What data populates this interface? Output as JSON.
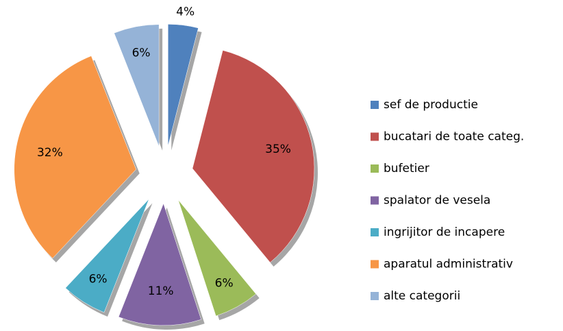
{
  "chart_data": {
    "type": "pie",
    "categories": [
      "sef de productie",
      "bucatari de toate categ.",
      "bufetier",
      "spalator de vesela",
      "ingrijitor de incapere",
      "aparatul administrativ",
      "alte categorii"
    ],
    "values": [
      4,
      35,
      6,
      11,
      6,
      32,
      6
    ],
    "value_labels": [
      "4%",
      "35%",
      "6%",
      "11%",
      "6%",
      "32%",
      "6%"
    ],
    "colors": [
      "#4f81bd",
      "#c0504d",
      "#9bbb59",
      "#8064a2",
      "#4bacc6",
      "#f79646",
      "#95b3d7"
    ],
    "legend": "right"
  }
}
